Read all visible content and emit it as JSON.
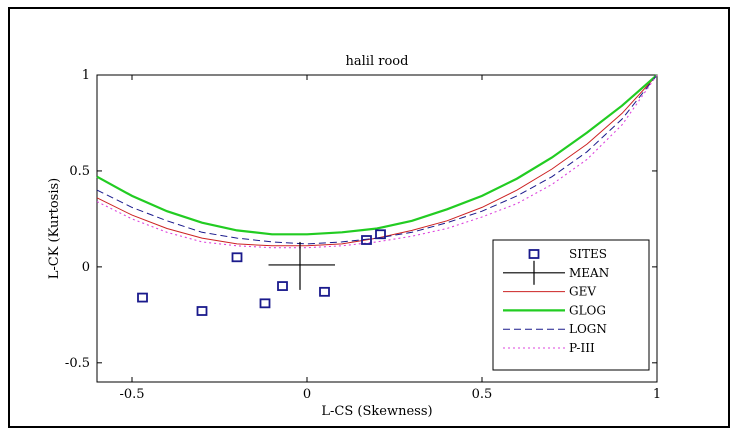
{
  "chart_data": {
    "type": "scatter",
    "title": "halil rood",
    "xlabel": "L-CS (Skewness)",
    "ylabel": "L-CK (Kurtosis)",
    "xlim": [
      -0.6,
      1.0
    ],
    "ylim": [
      -0.6,
      1.0
    ],
    "xticks": [
      "-0.5",
      "0",
      "0.5",
      "1"
    ],
    "xtick_values": [
      -0.5,
      0,
      0.5,
      1
    ],
    "yticks": [
      "-0.5",
      "0",
      "0.5",
      "1"
    ],
    "ytick_values": [
      -0.5,
      0,
      0.5,
      1
    ],
    "grid": false,
    "legend_position": "bottom-right",
    "sites": {
      "name": "SITES",
      "color": "#1a1a8c",
      "points": [
        {
          "x": -0.47,
          "y": -0.16
        },
        {
          "x": -0.3,
          "y": -0.23
        },
        {
          "x": -0.2,
          "y": 0.05
        },
        {
          "x": -0.12,
          "y": -0.19
        },
        {
          "x": -0.07,
          "y": -0.1
        },
        {
          "x": 0.05,
          "y": -0.13
        },
        {
          "x": 0.17,
          "y": 0.14
        },
        {
          "x": 0.21,
          "y": 0.17
        }
      ]
    },
    "mean": {
      "name": "MEAN",
      "color": "#000000",
      "x": -0.02,
      "y": 0.01,
      "x_extent": [
        -0.11,
        0.08
      ],
      "y_extent": [
        -0.12,
        0.13
      ]
    },
    "series": [
      {
        "name": "GEV",
        "color": "#cc2222",
        "style": "solid",
        "x": [
          -0.6,
          -0.5,
          -0.4,
          -0.3,
          -0.2,
          -0.1,
          0.0,
          0.1,
          0.2,
          0.3,
          0.4,
          0.5,
          0.6,
          0.7,
          0.8,
          0.9,
          1.0
        ],
        "y": [
          0.36,
          0.27,
          0.2,
          0.15,
          0.12,
          0.11,
          0.11,
          0.12,
          0.15,
          0.19,
          0.24,
          0.31,
          0.4,
          0.51,
          0.64,
          0.8,
          1.0
        ]
      },
      {
        "name": "GLOG",
        "color": "#22cc22",
        "style": "solid",
        "x": [
          -0.6,
          -0.5,
          -0.4,
          -0.3,
          -0.2,
          -0.1,
          0.0,
          0.1,
          0.2,
          0.3,
          0.4,
          0.5,
          0.6,
          0.7,
          0.8,
          0.9,
          1.0
        ],
        "y": [
          0.47,
          0.37,
          0.29,
          0.23,
          0.19,
          0.17,
          0.17,
          0.18,
          0.2,
          0.24,
          0.3,
          0.37,
          0.46,
          0.57,
          0.7,
          0.84,
          1.0
        ]
      },
      {
        "name": "LOGN",
        "color": "#1a1a8c",
        "style": "dashed",
        "x": [
          -0.6,
          -0.5,
          -0.4,
          -0.3,
          -0.2,
          -0.1,
          0.0,
          0.1,
          0.2,
          0.3,
          0.4,
          0.5,
          0.6,
          0.7,
          0.8,
          0.9,
          1.0
        ],
        "y": [
          0.4,
          0.31,
          0.24,
          0.18,
          0.15,
          0.13,
          0.12,
          0.13,
          0.15,
          0.18,
          0.23,
          0.29,
          0.37,
          0.47,
          0.6,
          0.77,
          1.0
        ]
      },
      {
        "name": "P-III",
        "color": "#dd44dd",
        "style": "dotted",
        "x": [
          -0.6,
          -0.5,
          -0.4,
          -0.3,
          -0.2,
          -0.1,
          0.0,
          0.1,
          0.2,
          0.3,
          0.4,
          0.5,
          0.6,
          0.7,
          0.8,
          0.9,
          1.0
        ],
        "y": [
          0.34,
          0.25,
          0.18,
          0.13,
          0.11,
          0.1,
          0.1,
          0.11,
          0.13,
          0.16,
          0.2,
          0.26,
          0.33,
          0.43,
          0.56,
          0.74,
          1.0
        ]
      }
    ]
  }
}
